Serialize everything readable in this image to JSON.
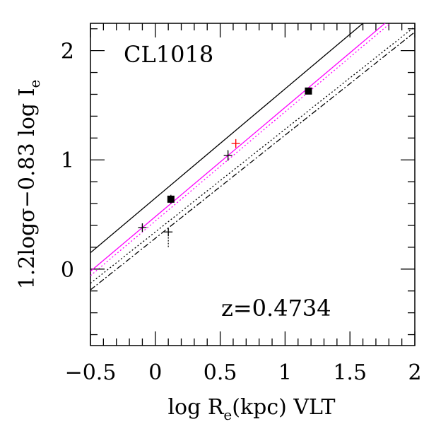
{
  "chart_data": {
    "type": "scatter",
    "xlabel": "log R",
    "xlabel_sub": "e",
    "xlabel_rest": "(kpc) VLT",
    "ylabel": "1.2logσ−0.83 log I",
    "ylabel_sub": "e",
    "xlim": [
      -0.5,
      2.0
    ],
    "ylim": [
      -0.7,
      2.25
    ],
    "xticks": [
      -0.5,
      0,
      0.5,
      1,
      1.5,
      2
    ],
    "xtick_labels": [
      "−0.5",
      "0",
      "0.5",
      "1",
      "1.5",
      "2"
    ],
    "yticks": [
      0,
      1,
      2
    ],
    "ytick_labels": [
      "0",
      "1",
      "2"
    ],
    "grid": false,
    "annotations": {
      "cluster": "CL1018",
      "redshift": "z=0.4734"
    },
    "lines": [
      {
        "style": "solid",
        "color": "#000000",
        "x": [
          -0.5,
          1.8
        ],
        "y": [
          0.15,
          2.45
        ]
      },
      {
        "style": "solid",
        "color": "#ff00ff",
        "x": [
          -0.5,
          1.8
        ],
        "y": [
          -0.02,
          2.28
        ]
      },
      {
        "style": "dotted",
        "color": "#ff00ff",
        "x": [
          -0.5,
          1.8
        ],
        "y": [
          -0.06,
          2.24
        ]
      },
      {
        "style": "dotted",
        "color": "#000000",
        "x": [
          -0.5,
          2.0
        ],
        "y": [
          -0.13,
          2.22
        ]
      },
      {
        "style": "dashdot",
        "color": "#000000",
        "x": [
          -0.5,
          2.0
        ],
        "y": [
          -0.19,
          2.17
        ]
      }
    ],
    "points": [
      {
        "marker": "cross",
        "color": "#000000",
        "x": -0.1,
        "y": 0.38,
        "yerr": 0.03
      },
      {
        "marker": "square",
        "color": "#000000",
        "x": 0.12,
        "y": 0.64,
        "yerr": 0.04
      },
      {
        "marker": "cross",
        "color": "#000000",
        "x": 0.1,
        "y": 0.34,
        "yerr_up": 0.03,
        "yerr_down": 0.14
      },
      {
        "marker": "cross",
        "color": "#000000",
        "x": 0.56,
        "y": 1.04,
        "yerr": 0.05
      },
      {
        "marker": "cross",
        "color": "#ff0000",
        "x": 0.62,
        "y": 1.15,
        "yerr": 0.04
      },
      {
        "marker": "square",
        "color": "#000000",
        "x": 1.18,
        "y": 1.63,
        "yerr": 0.02
      }
    ]
  }
}
